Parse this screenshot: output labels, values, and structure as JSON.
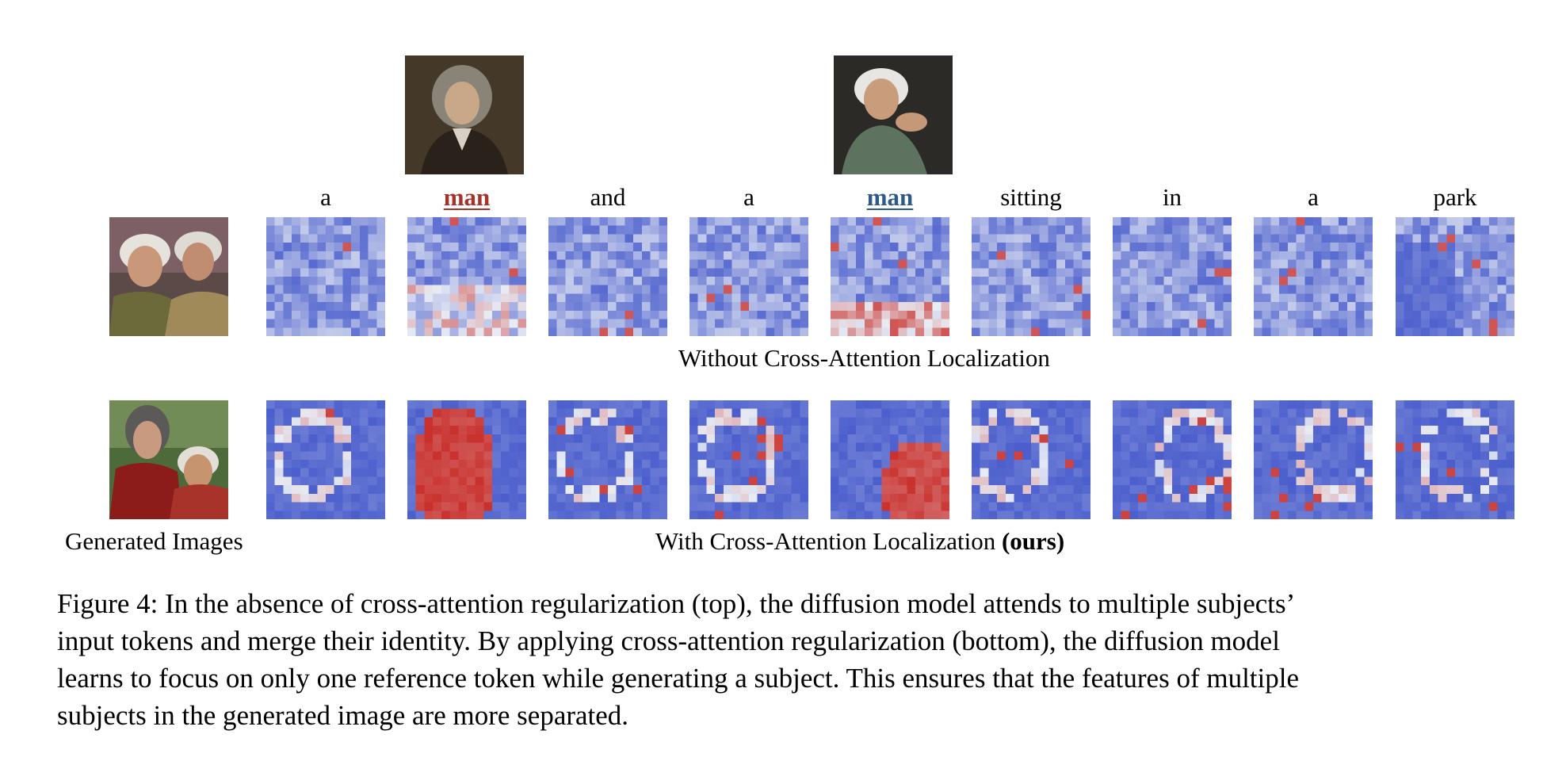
{
  "colors": {
    "subject_a": "#a9312a",
    "subject_b": "#2d5a8a",
    "map_low": "#3d52c9",
    "map_high": "#c9302c"
  },
  "reference_images": [
    {
      "token_index": 1,
      "icon": "portrait-photo"
    },
    {
      "token_index": 4,
      "icon": "portrait-photo"
    }
  ],
  "tokens": [
    "a",
    "man",
    "and",
    "a",
    "man",
    "sitting",
    "in",
    "a",
    "park"
  ],
  "subject_token_indices": [
    1,
    4
  ],
  "rows": {
    "without": {
      "caption": "Without Cross-Attention Localization"
    },
    "with": {
      "caption_main": "With Cross-Attention Localization",
      "caption_bold": "(ours)"
    }
  },
  "left_label": "Generated Images",
  "caption_lines": [
    "Figure 4: In the absence of cross-attention regularization (top), the diffusion model attends to multiple subjects’",
    "input tokens and merge their identity. By applying cross-attention regularization (bottom), the diffusion model",
    "learns to focus on only one reference token while generating a subject. This ensures that the features of multiple",
    "subjects in the generated image are more separated."
  ]
}
